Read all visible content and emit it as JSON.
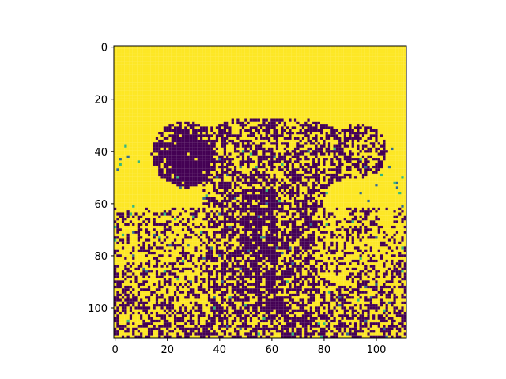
{
  "chart_data": {
    "type": "heatmap",
    "title": "",
    "xlabel": "",
    "ylabel": "",
    "rows": 112,
    "cols": 112,
    "xlim": [
      -0.5,
      111.5
    ],
    "ylim": [
      111.5,
      -0.5
    ],
    "y_axis_inverted": true,
    "grid": false,
    "colorbar": false,
    "colormap": "viridis",
    "value_range": [
      0,
      1
    ],
    "x_ticks": [
      0,
      20,
      40,
      60,
      80,
      100
    ],
    "y_ticks": [
      0,
      20,
      40,
      60,
      80,
      100
    ],
    "x_tick_labels": [
      "0",
      "20",
      "40",
      "60",
      "80",
      "100"
    ],
    "y_tick_labels": [
      "0",
      "20",
      "40",
      "60",
      "80",
      "100"
    ],
    "palette": {
      "low": "#440154",
      "mid_low": "#31688e",
      "mid_high": "#35b779",
      "high": "#fde725"
    },
    "description_of_content": "binarized elephant image: dark (0) elephant body, ears and trunk on bright (1) background; noisy speckled ground below row ~62"
  }
}
